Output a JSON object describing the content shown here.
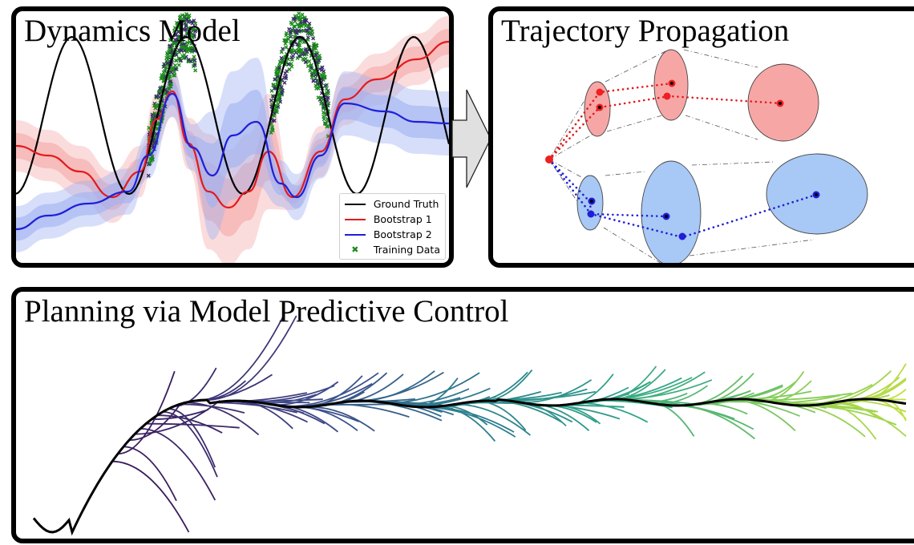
{
  "panels": {
    "dynamics": {
      "title": "Dynamics Model"
    },
    "trajectory": {
      "title": "Trajectory Propagation"
    },
    "planning": {
      "title": "Planning via Model Predictive Control"
    }
  },
  "legend": {
    "items": [
      {
        "label": "Ground Truth",
        "color": "#000000",
        "marker": "line"
      },
      {
        "label": "Bootstrap 1",
        "color": "#e31a1c",
        "marker": "line"
      },
      {
        "label": "Bootstrap 2",
        "color": "#1f1fd6",
        "marker": "line"
      },
      {
        "label": "Training Data",
        "color": "#1a8a1a",
        "marker": "x"
      }
    ]
  },
  "colors": {
    "ground_truth": "#000000",
    "bootstrap_1": "#e31a1c",
    "bootstrap_1_band": "#f4a3a3",
    "bootstrap_2": "#1f1fd6",
    "bootstrap_2_band": "#9fb1f2",
    "training_data": "#1a8a1a",
    "traj_red_fill": "#f7a6a6",
    "traj_blue_fill": "#a8c8f5",
    "arrow_fill": "#e0e0e0",
    "mpc_gradient": [
      "#3b1a5c",
      "#3e4a8a",
      "#2d7d8e",
      "#2fa58a",
      "#7cc95c",
      "#c5e040"
    ]
  }
}
